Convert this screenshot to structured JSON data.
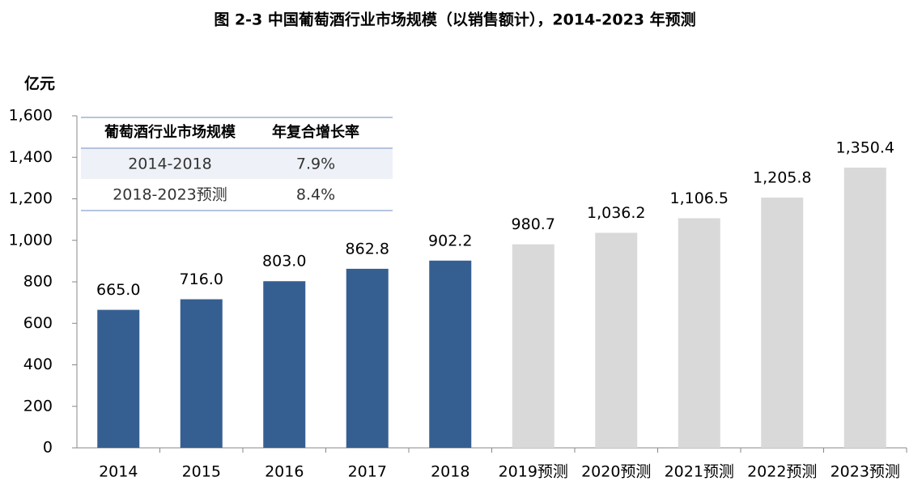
{
  "chart_data": {
    "type": "bar",
    "title": "图 2-3 中国葡萄酒行业市场规模（以销售额计），2014-2023 年预测",
    "y_label": "亿元",
    "categories": [
      "2014",
      "2015",
      "2016",
      "2017",
      "2018",
      "2019预测",
      "2020预测",
      "2021预测",
      "2022预测",
      "2023预测"
    ],
    "values": [
      665.0,
      716.0,
      803.0,
      862.8,
      902.2,
      980.7,
      1036.2,
      1106.5,
      1205.8,
      1350.4
    ],
    "value_labels": [
      "665.0",
      "716.0",
      "803.0",
      "862.8",
      "902.2",
      "980.7",
      "1,036.2",
      "1,106.5",
      "1,205.8",
      "1,350.4"
    ],
    "colors": [
      "#365f91",
      "#365f91",
      "#365f91",
      "#365f91",
      "#365f91",
      "#d9d9d9",
      "#d9d9d9",
      "#d9d9d9",
      "#d9d9d9",
      "#d9d9d9"
    ],
    "ylim": [
      0,
      1600
    ],
    "yticks": [
      0,
      200,
      400,
      600,
      800,
      {
        "value": 1000,
        "label": "1,000"
      },
      {
        "value": 1200,
        "label": "1,200"
      },
      {
        "value": 1400,
        "label": "1,400"
      },
      {
        "value": 1600,
        "label": "1,600"
      }
    ],
    "table": {
      "header": [
        "葡萄酒行业市场规模",
        "年复合增长率"
      ],
      "rows": [
        [
          "2014-2018",
          "7.9%"
        ],
        [
          "2018-2023预测",
          "8.4%"
        ]
      ]
    }
  }
}
